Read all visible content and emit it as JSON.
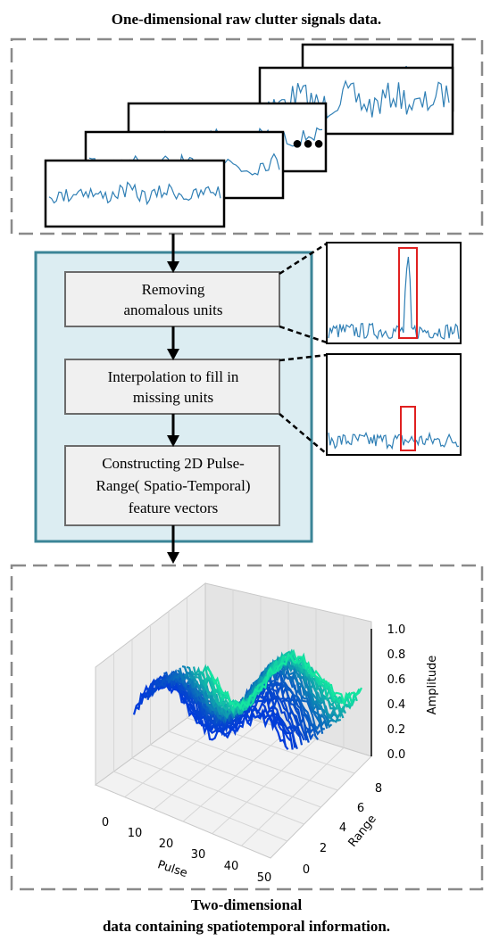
{
  "top_title": "One-dimensional raw clutter signals data.",
  "ellipsis": "●●●",
  "steps": [
    {
      "lines": [
        "Removing",
        "anomalous units"
      ]
    },
    {
      "lines": [
        "Interpolation to fill in",
        "missing units"
      ]
    },
    {
      "lines": [
        "Constructing 2D Pulse-",
        "Range( Spatio-Temporal)",
        "feature vectors"
      ]
    }
  ],
  "plot3d": {
    "z_label": "Amplitude",
    "z_ticks": [
      "0.0",
      "0.2",
      "0.4",
      "0.6",
      "0.8",
      "1.0"
    ],
    "x_label": "Pulse",
    "x_ticks": [
      "0",
      "10",
      "20",
      "30",
      "40",
      "50"
    ],
    "y_label": "Range",
    "y_ticks": [
      "0",
      "2",
      "4",
      "6",
      "8"
    ]
  },
  "bottom_title": [
    "Two-dimensional",
    "data containing spatiotemporal  information."
  ],
  "colors": {
    "signal": "#2f7fb5",
    "panel_fill": "#dcedf2",
    "panel_border": "#3b8597",
    "highlight": "#e02020",
    "dashed": "#8a8a8a",
    "step_fill": "#f0f0f0"
  }
}
